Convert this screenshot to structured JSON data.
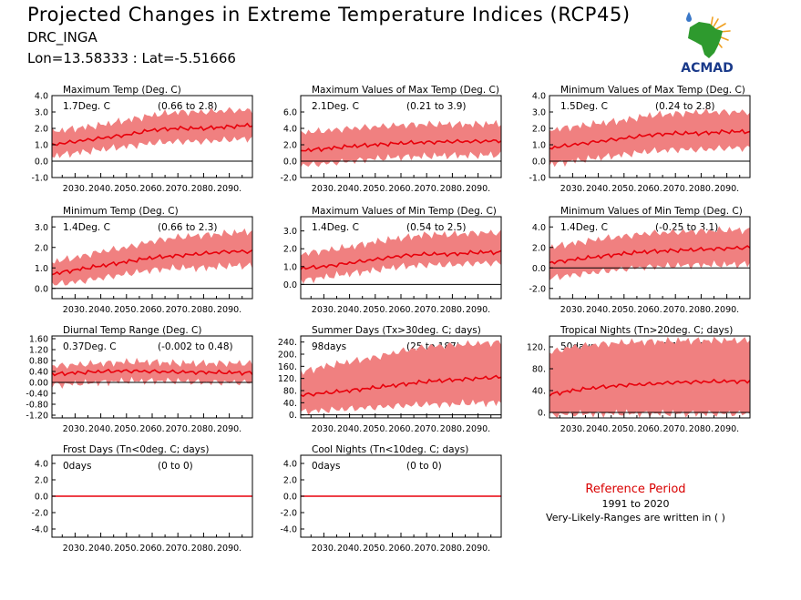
{
  "header": {
    "title": "Projected Changes in Extreme Temperature Indices (RCP45)",
    "station": "DRC_INGA",
    "coords": "Lon=13.58333 : Lat=-5.51666"
  },
  "logo": {
    "text": "ACMAD",
    "colors": {
      "africa": "#2e9a2e",
      "text": "#1a3a8a",
      "drop": "#3a78c8",
      "sun": "#f0a020"
    }
  },
  "reference": {
    "title": "Reference Period",
    "years": "1991 to 2020",
    "note": "Very-Likely-Ranges are written in ( )"
  },
  "colors": {
    "line": "#e8000b",
    "band": "#f08080",
    "zero": "#000000"
  },
  "chart_data": [
    {
      "type": "area",
      "title": "Maximum Temp (Deg. C)",
      "summary": "1.7Deg. C",
      "range": "(0.66 to 2.8)",
      "ylim": [
        -1.0,
        4.0
      ],
      "yticks": [
        "4.0",
        "3.0",
        "2.0",
        "1.0",
        "0.0",
        "-1.0"
      ],
      "xticks": [
        "2030.",
        "2040.",
        "2050.",
        "2060.",
        "2070.",
        "2080.",
        "2090."
      ],
      "series": [
        {
          "x": [
            2021,
            2030,
            2040,
            2050,
            2060,
            2070,
            2080,
            2090,
            2099
          ],
          "values": [
            1.0,
            1.2,
            1.4,
            1.6,
            1.9,
            2.0,
            2.0,
            2.1,
            2.2
          ]
        },
        {
          "x": [
            2021,
            2030,
            2040,
            2050,
            2060,
            2070,
            2080,
            2090,
            2099
          ],
          "values": [
            0.3,
            0.5,
            0.7,
            0.9,
            1.1,
            1.2,
            1.2,
            1.3,
            1.4
          ]
        },
        {
          "x": [
            2021,
            2030,
            2040,
            2050,
            2060,
            2070,
            2080,
            2090,
            2099
          ],
          "values": [
            1.8,
            2.0,
            2.2,
            2.5,
            2.8,
            3.0,
            3.0,
            3.1,
            3.1
          ]
        }
      ]
    },
    {
      "type": "area",
      "title": "Maximum Values of Max Temp (Deg. C)",
      "summary": "2.1Deg. C",
      "range": "(0.21 to 3.9)",
      "ylim": [
        -2.0,
        8.0
      ],
      "yticks": [
        "6.0",
        "4.0",
        "2.0",
        "0.0",
        "-2.0"
      ],
      "xticks": [
        "2030.",
        "2040.",
        "2050.",
        "2060.",
        "2070.",
        "2080.",
        "2090."
      ],
      "series": [
        {
          "x": [
            2021,
            2030,
            2040,
            2050,
            2060,
            2070,
            2080,
            2090,
            2099
          ],
          "values": [
            1.3,
            1.5,
            1.8,
            2.0,
            2.2,
            2.3,
            2.4,
            2.4,
            2.5
          ]
        },
        {
          "x": [
            2021,
            2030,
            2040,
            2050,
            2060,
            2070,
            2080,
            2090,
            2099
          ],
          "values": [
            -0.5,
            -0.3,
            0.0,
            0.3,
            0.5,
            0.6,
            0.7,
            0.7,
            0.8
          ]
        },
        {
          "x": [
            2021,
            2030,
            2040,
            2050,
            2060,
            2070,
            2080,
            2090,
            2099
          ],
          "values": [
            3.5,
            3.7,
            4.0,
            4.2,
            4.4,
            4.5,
            4.5,
            4.5,
            4.6
          ]
        }
      ]
    },
    {
      "type": "area",
      "title": "Minimum Values of Max Temp (Deg. C)",
      "summary": "1.5Deg. C",
      "range": "(0.24 to 2.8)",
      "ylim": [
        -1.0,
        4.0
      ],
      "yticks": [
        "4.0",
        "3.0",
        "2.0",
        "1.0",
        "0.0",
        "-1.0"
      ],
      "xticks": [
        "2030.",
        "2040.",
        "2050.",
        "2060.",
        "2070.",
        "2080.",
        "2090."
      ],
      "series": [
        {
          "x": [
            2021,
            2030,
            2040,
            2050,
            2060,
            2070,
            2080,
            2090,
            2099
          ],
          "values": [
            0.8,
            1.0,
            1.2,
            1.4,
            1.6,
            1.7,
            1.7,
            1.8,
            1.8
          ]
        },
        {
          "x": [
            2021,
            2030,
            2040,
            2050,
            2060,
            2070,
            2080,
            2090,
            2099
          ],
          "values": [
            -0.2,
            0.0,
            0.2,
            0.4,
            0.6,
            0.7,
            0.7,
            0.8,
            0.8
          ]
        },
        {
          "x": [
            2021,
            2030,
            2040,
            2050,
            2060,
            2070,
            2080,
            2090,
            2099
          ],
          "values": [
            1.9,
            2.1,
            2.3,
            2.5,
            2.8,
            2.9,
            3.0,
            3.0,
            3.0
          ]
        }
      ]
    },
    {
      "type": "area",
      "title": "Minimum Temp (Deg. C)",
      "summary": "1.4Deg. C",
      "range": "(0.66 to 2.3)",
      "ylim": [
        -0.5,
        3.5
      ],
      "yticks": [
        "3.0",
        "2.0",
        "1.0",
        "0.0"
      ],
      "xticks": [
        "2030.",
        "2040.",
        "2050.",
        "2060.",
        "2070.",
        "2080.",
        "2090."
      ],
      "series": [
        {
          "x": [
            2021,
            2030,
            2040,
            2050,
            2060,
            2070,
            2080,
            2090,
            2099
          ],
          "values": [
            0.7,
            0.9,
            1.1,
            1.3,
            1.5,
            1.6,
            1.7,
            1.8,
            1.8
          ]
        },
        {
          "x": [
            2021,
            2030,
            2040,
            2050,
            2060,
            2070,
            2080,
            2090,
            2099
          ],
          "values": [
            0.2,
            0.3,
            0.5,
            0.7,
            0.9,
            1.0,
            1.0,
            1.1,
            1.1
          ]
        },
        {
          "x": [
            2021,
            2030,
            2040,
            2050,
            2060,
            2070,
            2080,
            2090,
            2099
          ],
          "values": [
            1.3,
            1.5,
            1.8,
            2.0,
            2.3,
            2.5,
            2.6,
            2.7,
            2.8
          ]
        }
      ]
    },
    {
      "type": "area",
      "title": "Maximum Values of Min Temp (Deg. C)",
      "summary": "1.4Deg. C",
      "range": "(0.54 to 2.5)",
      "ylim": [
        -0.8,
        3.8
      ],
      "yticks": [
        "3.0",
        "2.0",
        "1.0",
        "0.0"
      ],
      "xticks": [
        "2030.",
        "2040.",
        "2050.",
        "2060.",
        "2070.",
        "2080.",
        "2090."
      ],
      "series": [
        {
          "x": [
            2021,
            2030,
            2040,
            2050,
            2060,
            2070,
            2080,
            2090,
            2099
          ],
          "values": [
            0.9,
            1.0,
            1.2,
            1.4,
            1.6,
            1.7,
            1.7,
            1.8,
            1.8
          ]
        },
        {
          "x": [
            2021,
            2030,
            2040,
            2050,
            2060,
            2070,
            2080,
            2090,
            2099
          ],
          "values": [
            0.2,
            0.4,
            0.6,
            0.8,
            1.0,
            1.1,
            1.1,
            1.2,
            1.2
          ]
        },
        {
          "x": [
            2021,
            2030,
            2040,
            2050,
            2060,
            2070,
            2080,
            2090,
            2099
          ],
          "values": [
            1.7,
            1.9,
            2.1,
            2.4,
            2.6,
            2.8,
            2.8,
            2.9,
            2.9
          ]
        }
      ]
    },
    {
      "type": "area",
      "title": "Minimum Values of Min Temp (Deg. C)",
      "summary": "1.4Deg. C",
      "range": "(-0.25 to 3.1)",
      "ylim": [
        -3.0,
        5.0
      ],
      "yticks": [
        "4.0",
        "2.0",
        "0.0",
        "-2.0"
      ],
      "xticks": [
        "2030.",
        "2040.",
        "2050.",
        "2060.",
        "2070.",
        "2080.",
        "2090."
      ],
      "series": [
        {
          "x": [
            2021,
            2030,
            2040,
            2050,
            2060,
            2070,
            2080,
            2090,
            2099
          ],
          "values": [
            0.5,
            0.8,
            1.1,
            1.4,
            1.6,
            1.7,
            1.8,
            1.9,
            2.0
          ]
        },
        {
          "x": [
            2021,
            2030,
            2040,
            2050,
            2060,
            2070,
            2080,
            2090,
            2099
          ],
          "values": [
            -1.0,
            -0.7,
            -0.4,
            -0.1,
            0.1,
            0.2,
            0.3,
            0.3,
            0.4
          ]
        },
        {
          "x": [
            2021,
            2030,
            2040,
            2050,
            2060,
            2070,
            2080,
            2090,
            2099
          ],
          "values": [
            2.0,
            2.4,
            2.8,
            3.1,
            3.4,
            3.5,
            3.6,
            3.7,
            3.7
          ]
        }
      ]
    },
    {
      "type": "area",
      "title": "Diurnal Temp Range (Deg. C)",
      "summary": "0.37Deg. C",
      "range": "(-0.002 to 0.48)",
      "ylim": [
        -1.3,
        1.7
      ],
      "yticks": [
        "1.60",
        "1.20",
        "0.80",
        "0.40",
        "0.00",
        "-0.40",
        "-0.80",
        "-1.20"
      ],
      "xticks": [
        "2030.",
        "2040.",
        "2050.",
        "2060.",
        "2070.",
        "2080.",
        "2090."
      ],
      "series": [
        {
          "x": [
            2021,
            2030,
            2040,
            2050,
            2060,
            2070,
            2080,
            2090,
            2099
          ],
          "values": [
            0.3,
            0.35,
            0.4,
            0.42,
            0.4,
            0.38,
            0.37,
            0.36,
            0.35
          ]
        },
        {
          "x": [
            2021,
            2030,
            2040,
            2050,
            2060,
            2070,
            2080,
            2090,
            2099
          ],
          "values": [
            -0.1,
            -0.05,
            0.0,
            0.05,
            0.05,
            0.05,
            0.0,
            0.0,
            0.0
          ]
        },
        {
          "x": [
            2021,
            2030,
            2040,
            2050,
            2060,
            2070,
            2080,
            2090,
            2099
          ],
          "values": [
            0.6,
            0.65,
            0.7,
            0.75,
            0.75,
            0.7,
            0.7,
            0.7,
            0.7
          ]
        }
      ]
    },
    {
      "type": "area",
      "title": "Summer Days (Tx>30deg. C; days)",
      "summary": "98days",
      "range": "(25 to 187)",
      "ylim": [
        -10,
        260
      ],
      "yticks": [
        "240.",
        "200.",
        "160.",
        "120.",
        "80.",
        "40.",
        "0."
      ],
      "xticks": [
        "2030.",
        "2040.",
        "2050.",
        "2060.",
        "2070.",
        "2080.",
        "2090."
      ],
      "series": [
        {
          "x": [
            2021,
            2030,
            2040,
            2050,
            2060,
            2070,
            2080,
            2090,
            2099
          ],
          "values": [
            65,
            72,
            80,
            90,
            100,
            110,
            115,
            120,
            125
          ]
        },
        {
          "x": [
            2021,
            2030,
            2040,
            2050,
            2060,
            2070,
            2080,
            2090,
            2099
          ],
          "values": [
            10,
            15,
            20,
            25,
            30,
            35,
            35,
            40,
            40
          ]
        },
        {
          "x": [
            2021,
            2030,
            2040,
            2050,
            2060,
            2070,
            2080,
            2090,
            2099
          ],
          "values": [
            140,
            160,
            175,
            190,
            210,
            225,
            230,
            235,
            240
          ]
        }
      ]
    },
    {
      "type": "area",
      "title": "Tropical Nights (Tn>20deg. C; days)",
      "summary": "50days",
      "range": "(-8.1 to 122)",
      "ylim": [
        -10,
        140
      ],
      "yticks": [
        "120.",
        "80.",
        "40.",
        "0."
      ],
      "xticks": [
        "2030.",
        "2040.",
        "2050.",
        "2060.",
        "2070.",
        "2080.",
        "2090."
      ],
      "series": [
        {
          "x": [
            2021,
            2030,
            2040,
            2050,
            2060,
            2070,
            2080,
            2090,
            2099
          ],
          "values": [
            33,
            40,
            46,
            50,
            52,
            55,
            56,
            57,
            57
          ]
        },
        {
          "x": [
            2021,
            2030,
            2040,
            2050,
            2060,
            2070,
            2080,
            2090,
            2099
          ],
          "values": [
            -5,
            -3,
            -2,
            -2,
            -2,
            -2,
            -2,
            -2,
            -2
          ]
        },
        {
          "x": [
            2021,
            2030,
            2040,
            2050,
            2060,
            2070,
            2080,
            2090,
            2099
          ],
          "values": [
            110,
            120,
            125,
            128,
            130,
            131,
            132,
            132,
            132
          ]
        }
      ]
    },
    {
      "type": "area",
      "title": "Frost Days (Tn<0deg. C; days)",
      "summary": "0days",
      "range": "(0 to 0)",
      "ylim": [
        -5.0,
        5.0
      ],
      "yticks": [
        "4.0",
        "2.0",
        "0.0",
        "-2.0",
        "-4.0"
      ],
      "xticks": [
        "2030.",
        "2040.",
        "2050.",
        "2060.",
        "2070.",
        "2080.",
        "2090."
      ],
      "series": [
        {
          "x": [
            2021,
            2099
          ],
          "values": [
            0,
            0
          ]
        },
        {
          "x": [
            2021,
            2099
          ],
          "values": [
            0,
            0
          ]
        },
        {
          "x": [
            2021,
            2099
          ],
          "values": [
            0,
            0
          ]
        }
      ]
    },
    {
      "type": "area",
      "title": "Cool Nights (Tn<10deg. C; days)",
      "summary": "0days",
      "range": "(0 to 0)",
      "ylim": [
        -5.0,
        5.0
      ],
      "yticks": [
        "4.0",
        "2.0",
        "0.0",
        "-2.0",
        "-4.0"
      ],
      "xticks": [
        "2030.",
        "2040.",
        "2050.",
        "2060.",
        "2070.",
        "2080.",
        "2090."
      ],
      "series": [
        {
          "x": [
            2021,
            2099
          ],
          "values": [
            0,
            0
          ]
        },
        {
          "x": [
            2021,
            2099
          ],
          "values": [
            0,
            0
          ]
        },
        {
          "x": [
            2021,
            2099
          ],
          "values": [
            0,
            0
          ]
        }
      ]
    }
  ]
}
